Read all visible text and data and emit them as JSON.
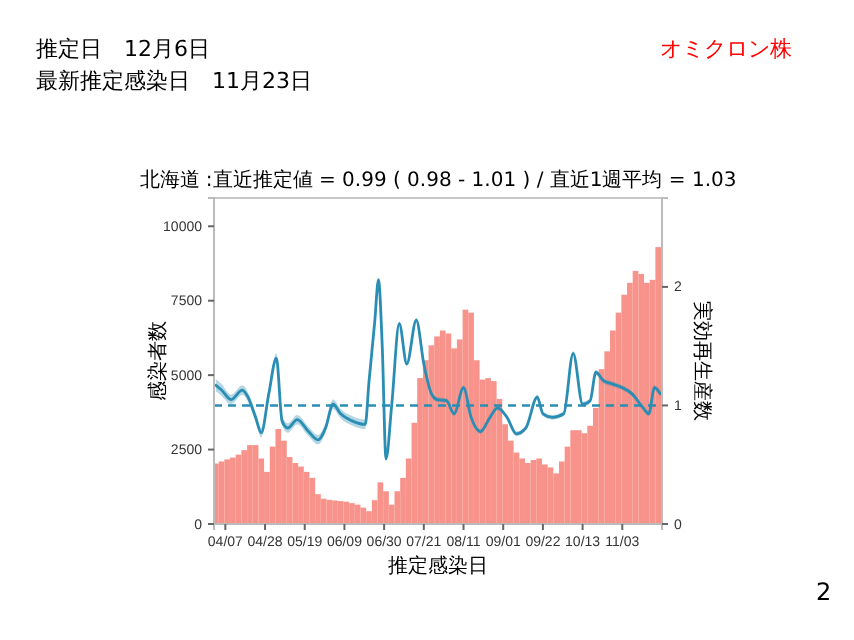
{
  "chart_data": {
    "type": "bar",
    "title": "北海道 :直近推定値 = 0.99 ( 0.98 - 1.01 ) / 直近1週平均 = 1.03",
    "xlabel": "推定感染日",
    "ylabel": "感染者数",
    "y2label": "実効再生産数",
    "annotations": [
      "推定日　12月6日",
      "最新推定感染日　11月23日",
      "オミクロン株",
      "2"
    ],
    "xlim": [
      "--04-01",
      "--11-24"
    ],
    "xticks": [
      {
        "value": "--04-07",
        "label": "04/07"
      },
      {
        "value": "--04-28",
        "label": "04/28"
      },
      {
        "value": "--05-19",
        "label": "05/19"
      },
      {
        "value": "--06-09",
        "label": "06/09"
      },
      {
        "value": "--06-30",
        "label": "06/30"
      },
      {
        "value": "--07-21",
        "label": "07/21"
      },
      {
        "value": "--08-11",
        "label": "08/11"
      },
      {
        "value": "--09-01",
        "label": "09/01"
      },
      {
        "value": "--09-22",
        "label": "09/22"
      },
      {
        "value": "--10-13",
        "label": "10/13"
      },
      {
        "value": "--11-03",
        "label": "11/03"
      }
    ],
    "ylim": [
      0,
      10950
    ],
    "yticks": [
      0,
      2500,
      5000,
      7500,
      10000
    ],
    "y2lim": [
      0,
      2.75
    ],
    "y2ticks": [
      0,
      1,
      2
    ],
    "ref_lines": [
      {
        "axis": "y2",
        "value": 1,
        "color": "#2a8db3",
        "line_style": "dashed"
      }
    ],
    "series": [
      {
        "color": "#f7938a",
        "x": [
          "--04-02",
          "--04-05",
          "--04-08",
          "--04-11",
          "--04-14",
          "--04-17",
          "--04-20",
          "--04-23",
          "--04-26",
          "--04-29",
          "--05-02",
          "--05-05",
          "--05-08",
          "--05-11",
          "--05-14",
          "--05-17",
          "--05-20",
          "--05-23",
          "--05-26",
          "--05-29",
          "--06-01",
          "--06-04",
          "--06-07",
          "--06-10",
          "--06-13",
          "--06-16",
          "--06-19",
          "--06-22",
          "--06-25",
          "--06-28",
          "--07-01",
          "--07-04",
          "--07-07",
          "--07-10",
          "--07-13",
          "--07-16",
          "--07-19",
          "--07-22",
          "--07-25",
          "--07-28",
          "--07-31",
          "--08-03",
          "--08-06",
          "--08-09",
          "--08-12",
          "--08-15",
          "--08-18",
          "--08-21",
          "--08-24",
          "--08-27",
          "--08-30",
          "--09-02",
          "--09-05",
          "--09-08",
          "--09-11",
          "--09-14",
          "--09-17",
          "--09-20",
          "--09-23",
          "--09-26",
          "--09-29",
          "--10-02",
          "--10-05",
          "--10-08",
          "--10-11",
          "--10-14",
          "--10-17",
          "--10-20",
          "--10-23",
          "--10-26",
          "--10-29",
          "--11-01",
          "--11-04",
          "--11-07",
          "--11-10",
          "--11-13",
          "--11-16",
          "--11-19",
          "--11-22"
        ],
        "values": [
          2030,
          2100,
          2170,
          2230,
          2330,
          2480,
          2650,
          2650,
          2200,
          1750,
          2600,
          3190,
          2800,
          2250,
          2050,
          1930,
          1750,
          1550,
          1000,
          850,
          810,
          790,
          770,
          750,
          700,
          650,
          550,
          430,
          800,
          1400,
          1100,
          650,
          1100,
          1550,
          2200,
          3400,
          4900,
          5500,
          6000,
          6300,
          6500,
          6400,
          5900,
          6200,
          7200,
          7100,
          5500,
          4850,
          4900,
          4800,
          4200,
          3350,
          2800,
          2400,
          2200,
          2050,
          2150,
          2200,
          2000,
          1900,
          1700,
          2100,
          2600,
          3150,
          3150,
          3050,
          3300,
          3900,
          5200,
          5800,
          6500,
          7100,
          7700,
          8100,
          8500,
          8400,
          8100,
          8200,
          9300
        ]
      },
      {
        "type": "line",
        "axis": "y2",
        "color": "#2a8db3",
        "x": [
          "--04-02",
          "--04-05",
          "--04-10",
          "--04-16",
          "--04-19",
          "--04-23",
          "--04-26",
          "--04-30",
          "--05-04",
          "--05-07",
          "--05-10",
          "--05-15",
          "--05-21",
          "--05-26",
          "--05-30",
          "--06-03",
          "--06-07",
          "--06-13",
          "--06-20",
          "--06-22",
          "--06-25",
          "--06-27",
          "--06-29",
          "--07-01",
          "--07-04",
          "--07-08",
          "--07-12",
          "--07-17",
          "--07-21",
          "--07-25",
          "--07-28",
          "--08-02",
          "--08-06",
          "--08-11",
          "--08-15",
          "--08-20",
          "--08-25",
          "--08-29",
          "--09-03",
          "--09-08",
          "--09-13",
          "--09-19",
          "--09-22",
          "--09-27",
          "--10-03",
          "--10-08",
          "--10-13",
          "--10-17",
          "--10-20",
          "--10-24",
          "--10-29",
          "--11-03",
          "--11-08",
          "--11-14",
          "--11-17",
          "--11-20",
          "--11-23"
        ],
        "values": [
          1.17,
          1.13,
          1.05,
          1.13,
          1.07,
          0.9,
          0.77,
          1.1,
          1.4,
          0.87,
          0.81,
          0.88,
          0.78,
          0.71,
          0.81,
          1.01,
          0.93,
          0.87,
          0.84,
          1.2,
          1.7,
          2.06,
          1.5,
          0.55,
          1.0,
          1.69,
          1.35,
          1.72,
          1.35,
          1.1,
          1.05,
          1.04,
          0.93,
          1.15,
          0.9,
          0.78,
          0.9,
          0.98,
          0.9,
          0.76,
          0.81,
          1.07,
          0.93,
          0.9,
          0.93,
          1.44,
          1.01,
          1.04,
          1.28,
          1.21,
          1.18,
          1.15,
          1.1,
          0.98,
          0.93,
          1.15,
          1.1
        ],
        "lower": [
          1.12,
          1.08,
          1.01,
          1.09,
          1.03,
          0.86,
          0.73,
          1.06,
          1.36,
          0.83,
          0.77,
          0.84,
          0.74,
          0.67,
          0.77,
          0.97,
          0.89,
          0.83,
          0.8,
          1.18,
          1.68,
          2.04,
          1.48,
          0.53,
          0.98,
          1.67,
          1.33,
          1.7,
          1.33,
          1.08,
          1.03,
          1.02,
          0.91,
          1.13,
          0.88,
          0.76,
          0.88,
          0.96,
          0.88,
          0.74,
          0.79,
          1.05,
          0.91,
          0.88,
          0.91,
          1.42,
          0.99,
          1.02,
          1.26,
          1.19,
          1.16,
          1.13,
          1.08,
          0.96,
          0.91,
          1.13,
          1.07
        ],
        "upper": [
          1.22,
          1.18,
          1.09,
          1.17,
          1.11,
          0.94,
          0.81,
          1.14,
          1.44,
          0.91,
          0.85,
          0.92,
          0.82,
          0.75,
          0.85,
          1.05,
          0.97,
          0.91,
          0.88,
          1.22,
          1.72,
          2.08,
          1.52,
          0.57,
          1.02,
          1.71,
          1.37,
          1.74,
          1.37,
          1.12,
          1.07,
          1.06,
          0.95,
          1.17,
          0.92,
          0.8,
          0.92,
          1.0,
          0.92,
          0.78,
          0.83,
          1.09,
          0.95,
          0.92,
          0.95,
          1.46,
          1.03,
          1.06,
          1.3,
          1.23,
          1.2,
          1.17,
          1.12,
          1.0,
          0.95,
          1.17,
          1.13
        ]
      }
    ]
  }
}
